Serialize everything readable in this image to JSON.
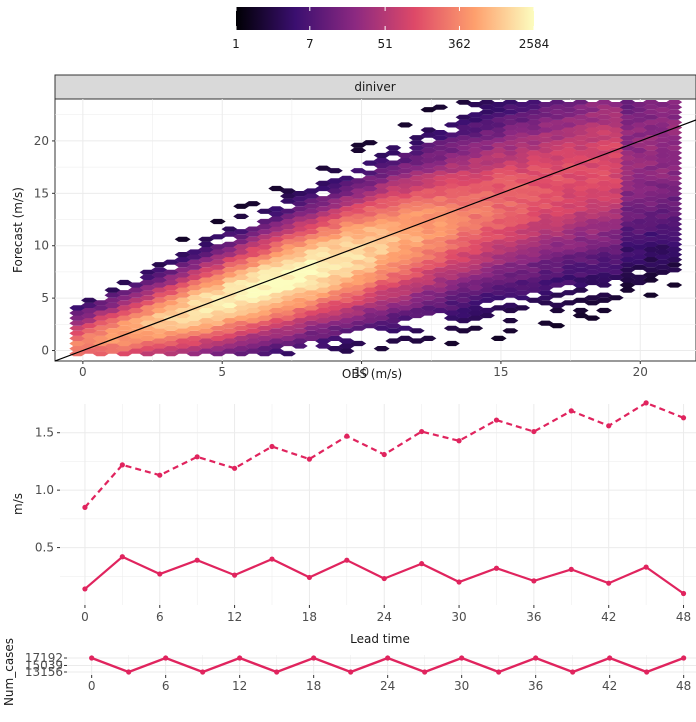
{
  "chart_data": [
    {
      "type": "hexbin",
      "panel": "scatter",
      "strip_title": "diniver",
      "xlabel": "OBS (m/s)",
      "ylabel": "Forecast (m/s)",
      "xlim": [
        -1,
        22
      ],
      "ylim": [
        -1,
        24
      ],
      "x_ticks": [
        0,
        5,
        10,
        15,
        20
      ],
      "y_ticks": [
        0,
        5,
        10,
        15,
        20
      ],
      "x_tick_labels": [
        "0",
        "5",
        "10",
        "15",
        "20"
      ],
      "y_tick_labels": [
        "0",
        "5",
        "10",
        "15",
        "20"
      ],
      "reference_line": {
        "slope": 1,
        "intercept": 0
      },
      "colorbar": {
        "scale": "log",
        "ticks": [
          1,
          7,
          51,
          362,
          2584
        ],
        "tick_labels": [
          "1",
          "7",
          "51",
          "362",
          "2584"
        ],
        "colors": [
          "#000004",
          "#3b0f70",
          "#8c2981",
          "#de4968",
          "#fe9f6d",
          "#fcfdbf"
        ]
      },
      "grid": true
    },
    {
      "type": "line",
      "panel": "score",
      "xlabel": "Lead time",
      "ylabel": "m/s",
      "xlim": [
        -2,
        49
      ],
      "ylim": [
        0.0,
        1.75
      ],
      "x_ticks": [
        0,
        6,
        12,
        18,
        24,
        30,
        36,
        42,
        48
      ],
      "x_tick_labels": [
        "0",
        "6",
        "12",
        "18",
        "24",
        "30",
        "36",
        "42",
        "48"
      ],
      "y_ticks": [
        0.5,
        1.0,
        1.5
      ],
      "y_tick_labels": [
        "0.5",
        "1.0",
        "1.5"
      ],
      "color": "#e0245e",
      "x": [
        0,
        3,
        6,
        9,
        12,
        15,
        18,
        21,
        24,
        27,
        30,
        33,
        36,
        39,
        42,
        45,
        48
      ],
      "series": [
        {
          "style": "dashed",
          "values": [
            0.85,
            1.22,
            1.13,
            1.29,
            1.19,
            1.38,
            1.27,
            1.47,
            1.31,
            1.51,
            1.43,
            1.61,
            1.51,
            1.69,
            1.56,
            1.76,
            1.63
          ]
        },
        {
          "style": "solid",
          "values": [
            0.14,
            0.42,
            0.27,
            0.39,
            0.26,
            0.4,
            0.24,
            0.39,
            0.23,
            0.36,
            0.2,
            0.32,
            0.21,
            0.31,
            0.19,
            0.33,
            0.1
          ]
        }
      ],
      "grid": true
    },
    {
      "type": "line",
      "panel": "num_cases",
      "xlabel": "",
      "ylabel": "Num_cases",
      "xlim": [
        -2,
        49
      ],
      "ylim": [
        13156,
        17192
      ],
      "x_ticks": [
        0,
        6,
        12,
        18,
        24,
        30,
        36,
        42,
        48
      ],
      "x_tick_labels": [
        "0",
        "6",
        "12",
        "18",
        "24",
        "30",
        "36",
        "42",
        "48"
      ],
      "y_ticks": [
        13156,
        15039,
        17192
      ],
      "y_tick_labels": [
        "13156",
        "15039",
        "17192"
      ],
      "color": "#e0245e",
      "x": [
        0,
        3,
        6,
        9,
        12,
        15,
        18,
        21,
        24,
        27,
        30,
        33,
        36,
        39,
        42,
        45,
        48
      ],
      "values": [
        17192,
        13156,
        17192,
        13156,
        17192,
        13156,
        17192,
        13156,
        17192,
        13156,
        17192,
        13156,
        17192,
        13156,
        17192,
        13156,
        17192
      ],
      "grid": true
    }
  ]
}
